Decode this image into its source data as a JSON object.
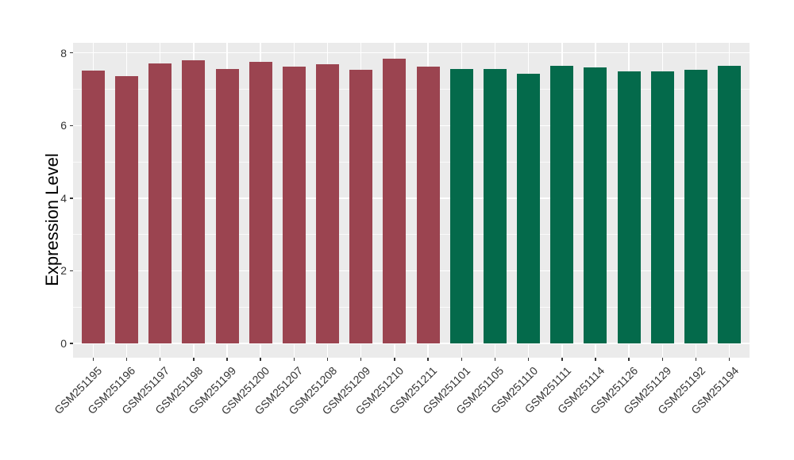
{
  "chart_data": {
    "type": "bar",
    "title": "",
    "xlabel": "",
    "ylabel": "Expression Level",
    "ylim": [
      0,
      8.3
    ],
    "yticks": [
      0,
      2,
      4,
      6,
      8
    ],
    "minor_yticks": [
      1,
      3,
      5,
      7
    ],
    "grid": true,
    "legend": false,
    "x_tick_rotation_deg": 45,
    "categories": [
      "GSM251195",
      "GSM251196",
      "GSM251197",
      "GSM251198",
      "GSM251199",
      "GSM251200",
      "GSM251207",
      "GSM251208",
      "GSM251209",
      "GSM251210",
      "GSM251211",
      "GSM251101",
      "GSM251105",
      "GSM251110",
      "GSM251111",
      "GSM251114",
      "GSM251126",
      "GSM251129",
      "GSM251192",
      "GSM251194"
    ],
    "values": [
      7.52,
      7.37,
      7.71,
      7.79,
      7.55,
      7.75,
      7.62,
      7.69,
      7.54,
      7.83,
      7.62,
      7.56,
      7.56,
      7.42,
      7.65,
      7.6,
      7.49,
      7.48,
      7.54,
      7.64
    ],
    "bar_colors": [
      "#9B4450",
      "#9B4450",
      "#9B4450",
      "#9B4450",
      "#9B4450",
      "#9B4450",
      "#9B4450",
      "#9B4450",
      "#9B4450",
      "#9B4450",
      "#9B4450",
      "#046A4B",
      "#046A4B",
      "#046A4B",
      "#046A4B",
      "#046A4B",
      "#046A4B",
      "#046A4B",
      "#046A4B",
      "#046A4B"
    ],
    "colors": {
      "left_group_bar": "#9B4450",
      "right_group_bar": "#046A4B",
      "panel_background": "#EBEBEB",
      "figure_background": "#FFFFFF",
      "gridline": "#FFFFFF",
      "axis_text": "#333333",
      "tick_mark": "#333333"
    }
  }
}
